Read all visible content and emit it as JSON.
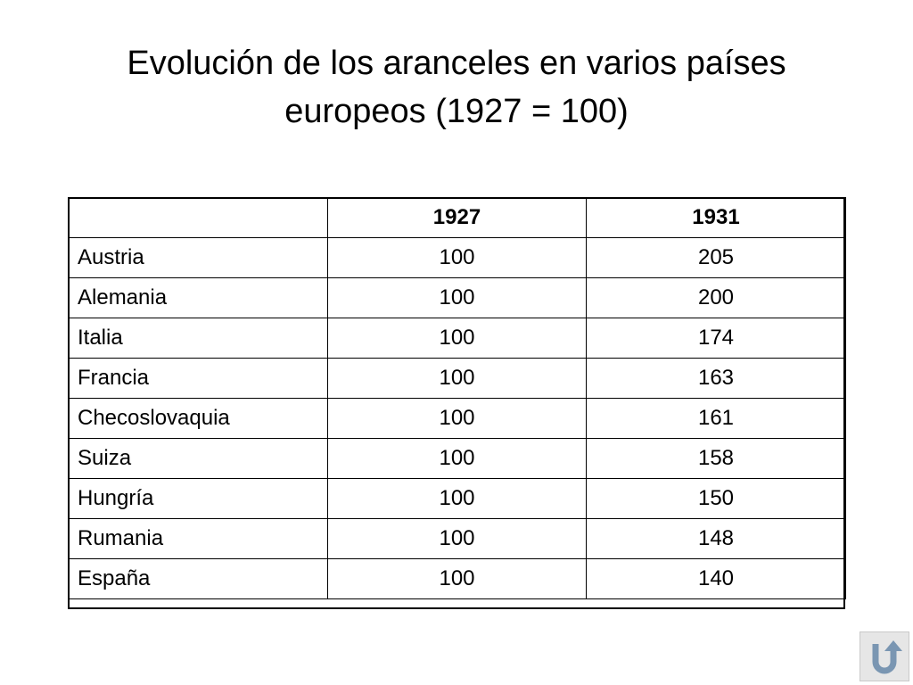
{
  "slide": {
    "title_line1": "Evolución de los aranceles en varios países",
    "title_line2": "europeos (1927 = 100)"
  },
  "table": {
    "headers": [
      "",
      "1927",
      "1931"
    ],
    "rows": [
      {
        "country": "Austria",
        "y1927": "100",
        "y1931": "205"
      },
      {
        "country": "Alemania",
        "y1927": "100",
        "y1931": "200"
      },
      {
        "country": "Italia",
        "y1927": "100",
        "y1931": "174"
      },
      {
        "country": "Francia",
        "y1927": "100",
        "y1931": "163"
      },
      {
        "country": "Checoslovaquia",
        "y1927": "100",
        "y1931": "161"
      },
      {
        "country": "Suiza",
        "y1927": "100",
        "y1931": "158"
      },
      {
        "country": "Hungría",
        "y1927": "100",
        "y1931": "150"
      },
      {
        "country": "Rumania",
        "y1927": "100",
        "y1931": "148"
      },
      {
        "country": "España",
        "y1927": "100",
        "y1931": "140"
      }
    ]
  },
  "navigation": {
    "back_icon": "return-arrow-icon",
    "icon_color": "#7a96b2",
    "button_bg": "#e6e6e6"
  }
}
